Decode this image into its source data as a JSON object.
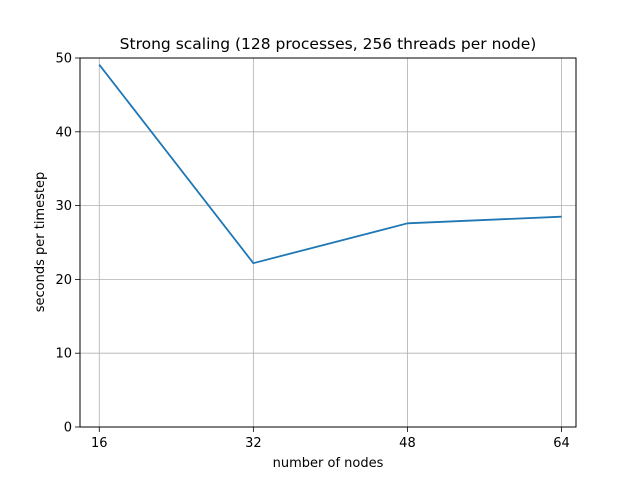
{
  "chart_data": {
    "type": "line",
    "title": "Strong scaling (128 processes, 256 threads per node)",
    "xlabel": "number of nodes",
    "ylabel": "seconds per timestep",
    "xlim": [
      14,
      65.5
    ],
    "ylim": [
      0,
      50
    ],
    "x_ticks": [
      16,
      32,
      48,
      64
    ],
    "y_ticks": [
      0,
      10,
      20,
      30,
      40,
      50
    ],
    "grid": true,
    "series": [
      {
        "color": "#1f77b4",
        "points": [
          {
            "x": 16,
            "y": 49.1
          },
          {
            "x": 32,
            "y": 22.2
          },
          {
            "x": 48,
            "y": 27.6
          },
          {
            "x": 64,
            "y": 28.5
          }
        ]
      }
    ]
  }
}
